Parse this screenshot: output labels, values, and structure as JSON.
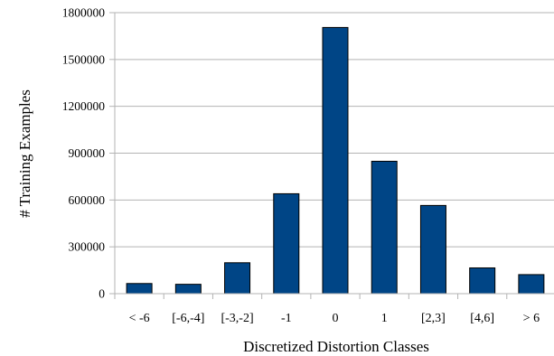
{
  "chart_data": {
    "type": "bar",
    "title": "",
    "xlabel": "Discretized Distortion Classes",
    "ylabel": "# Training Examples",
    "categories": [
      "< -6",
      "[-6,-4]",
      "[-3,-2]",
      "-1",
      "0",
      "1",
      "[2,3]",
      "[4,6]",
      "> 6"
    ],
    "values": [
      65000,
      60000,
      198000,
      640000,
      1705000,
      848000,
      565000,
      165000,
      122000
    ],
    "ylim": [
      0,
      1800000
    ],
    "yticks": [
      0,
      300000,
      600000,
      900000,
      1200000,
      1500000,
      1800000
    ],
    "grid": "y-major",
    "legend": "none",
    "colors": {
      "bar": "#004586",
      "bar_edge": "#000000",
      "grid": "#b3b3b3"
    }
  }
}
